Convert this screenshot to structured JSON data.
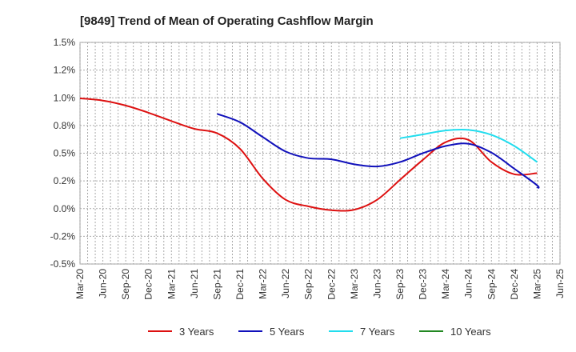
{
  "chart_data": {
    "type": "line",
    "title": "[9849]  Trend of Mean of Operating Cashflow Margin",
    "xlabel": "",
    "ylabel": "",
    "y_tick_labels": [
      "1.5%",
      "1.2%",
      "1.0%",
      "0.8%",
      "0.5%",
      "0.2%",
      "0.0%",
      "-0.2%",
      "-0.5%"
    ],
    "y_tick_values": [
      1.5,
      1.25,
      1.0,
      0.75,
      0.5,
      0.25,
      0.0,
      -0.25,
      -0.5
    ],
    "ylim": [
      -0.5,
      1.5
    ],
    "x_tick_labels": [
      "Mar-20",
      "Jun-20",
      "Sep-20",
      "Dec-20",
      "Mar-21",
      "Jun-21",
      "Sep-21",
      "Dec-21",
      "Mar-22",
      "Jun-22",
      "Sep-22",
      "Dec-22",
      "Mar-23",
      "Jun-23",
      "Sep-23",
      "Dec-23",
      "Mar-24",
      "Jun-24",
      "Sep-24",
      "Dec-24",
      "Mar-25",
      "Jun-25"
    ],
    "grid": true,
    "legend_position": "bottom",
    "series": [
      {
        "name": "3 Years",
        "color": "#dd1111",
        "points": [
          [
            "Mar-20",
            0.995
          ],
          [
            "Jun-20",
            0.975
          ],
          [
            "Sep-20",
            0.93
          ],
          [
            "Dec-20",
            0.865
          ],
          [
            "Mar-21",
            0.79
          ],
          [
            "Jun-21",
            0.72
          ],
          [
            "Sep-21",
            0.68
          ],
          [
            "Dec-21",
            0.54
          ],
          [
            "Mar-22",
            0.27
          ],
          [
            "Jun-22",
            0.08
          ],
          [
            "Sep-22",
            0.02
          ],
          [
            "Dec-22",
            -0.015
          ],
          [
            "Mar-23",
            -0.01
          ],
          [
            "Jun-23",
            0.08
          ],
          [
            "Sep-23",
            0.26
          ],
          [
            "Dec-23",
            0.44
          ],
          [
            "Mar-24",
            0.6
          ],
          [
            "Jun-24",
            0.62
          ],
          [
            "Sep-24",
            0.42
          ],
          [
            "Dec-24",
            0.31
          ],
          [
            "Mar-25",
            0.32
          ]
        ]
      },
      {
        "name": "5 Years",
        "color": "#1111bb",
        "points": [
          [
            "Sep-21",
            0.855
          ],
          [
            "Dec-21",
            0.78
          ],
          [
            "Mar-22",
            0.645
          ],
          [
            "Jun-22",
            0.515
          ],
          [
            "Sep-22",
            0.455
          ],
          [
            "Dec-22",
            0.445
          ],
          [
            "Mar-23",
            0.4
          ],
          [
            "Jun-23",
            0.38
          ],
          [
            "Sep-23",
            0.42
          ],
          [
            "Dec-23",
            0.5
          ],
          [
            "Mar-24",
            0.565
          ],
          [
            "Jun-24",
            0.585
          ],
          [
            "Sep-24",
            0.505
          ],
          [
            "Dec-24",
            0.36
          ],
          [
            "Mar-25",
            0.21
          ],
          [
            "Mar-25",
            0.185
          ]
        ]
      },
      {
        "name": "7 Years",
        "color": "#22ddee",
        "points": [
          [
            "Sep-23",
            0.635
          ],
          [
            "Dec-23",
            0.67
          ],
          [
            "Mar-24",
            0.705
          ],
          [
            "Jun-24",
            0.71
          ],
          [
            "Sep-24",
            0.665
          ],
          [
            "Dec-24",
            0.565
          ],
          [
            "Mar-25",
            0.42
          ]
        ]
      },
      {
        "name": "10 Years",
        "color": "#228822",
        "points": []
      }
    ]
  }
}
